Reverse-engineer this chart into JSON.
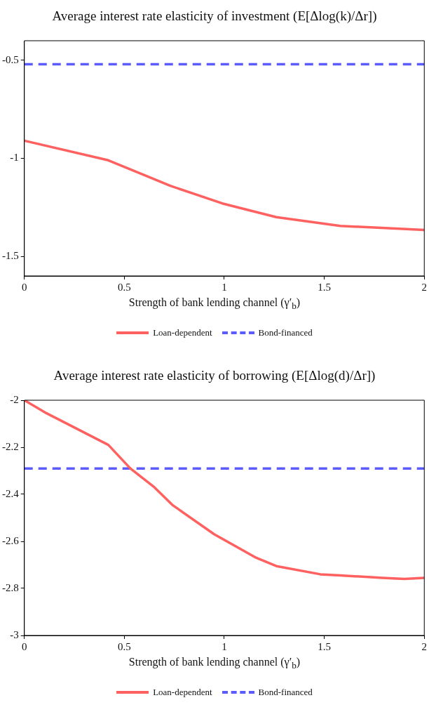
{
  "chart_data": [
    {
      "type": "line",
      "title": "Average interest rate elasticity of investment (E[Δlog(k)/Δr])",
      "xlabel": "Strength of bank lending channel (γ′$_{b}$)",
      "xlim": [
        0,
        2
      ],
      "xticks": [
        0,
        0.5,
        1,
        1.5,
        2
      ],
      "ylim": [
        -1.6,
        -0.4
      ],
      "yticks": [
        -1.5,
        -1,
        -0.5
      ],
      "grid": false,
      "legend": "bottom",
      "series": [
        {
          "name": "Loan-dependent",
          "color": "#ff6060",
          "line_style": "solid",
          "x": [
            0,
            0.42,
            0.73,
            0.99,
            1.26,
            1.58,
            2
          ],
          "values": [
            -0.91,
            -1.01,
            -1.14,
            -1.23,
            -1.3,
            -1.345,
            -1.365
          ]
        },
        {
          "name": "Bond-financed",
          "color": "#5b5bff",
          "line_style": "dashed",
          "x": [
            0,
            2
          ],
          "values": [
            -0.52,
            -0.52
          ]
        }
      ]
    },
    {
      "type": "line",
      "title": "Average interest rate elasticity of borrowing (E[Δlog(d)/Δr])",
      "xlabel": "Strength of bank lending channel (γ′$_{b}$)",
      "xlim": [
        0,
        2
      ],
      "xticks": [
        0,
        0.5,
        1,
        1.5,
        2
      ],
      "ylim": [
        -3,
        -2
      ],
      "yticks": [
        -3,
        -2.8,
        -2.6,
        -2.4,
        -2.2,
        -2
      ],
      "grid": false,
      "legend": "bottom",
      "series": [
        {
          "name": "Loan-dependent",
          "color": "#ff6060",
          "line_style": "solid",
          "x": [
            0,
            0.11,
            0.42,
            0.53,
            0.65,
            0.74,
            0.95,
            1.16,
            1.26,
            1.48,
            1.58,
            1.69,
            1.79,
            1.9,
            2
          ],
          "values": [
            -2,
            -2.055,
            -2.19,
            -2.29,
            -2.37,
            -2.445,
            -2.57,
            -2.67,
            -2.705,
            -2.74,
            -2.745,
            -2.75,
            -2.755,
            -2.76,
            -2.755
          ]
        },
        {
          "name": "Bond-financed",
          "color": "#5b5bff",
          "line_style": "dashed",
          "x": [
            0,
            2
          ],
          "values": [
            -2.29,
            -2.29
          ]
        }
      ]
    }
  ]
}
